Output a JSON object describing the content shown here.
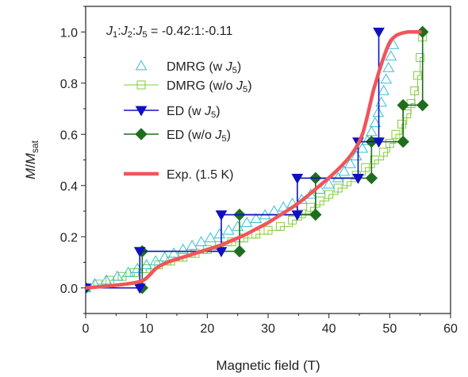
{
  "chart_data": {
    "type": "scatter",
    "annotation": {
      "parts": [
        {
          "t": "J",
          "i": true
        },
        {
          "t": "1",
          "sub": true
        },
        {
          "t": ":"
        },
        {
          "t": "J",
          "i": true
        },
        {
          "t": "2",
          "sub": true
        },
        {
          "t": ":"
        },
        {
          "t": "J",
          "i": true
        },
        {
          "t": "5",
          "sub": true
        },
        {
          "t": " = -0.42:1:-0.11"
        }
      ]
    },
    "xlabel": "Magnetic field (T)",
    "ylabel": {
      "parts": [
        {
          "t": "M",
          "i": true
        },
        {
          "t": "/"
        },
        {
          "t": "M",
          "i": true
        },
        {
          "t": "sat",
          "sub": true
        }
      ]
    },
    "xlim": [
      0,
      60
    ],
    "ylim": [
      -0.1,
      1.1
    ],
    "xticks": [
      "0",
      "10",
      "20",
      "30",
      "40",
      "50",
      "60"
    ],
    "yticks": [
      "0.0",
      "0.2",
      "0.4",
      "0.6",
      "0.8",
      "1.0"
    ],
    "grid": false,
    "legend_position": "left-center",
    "series": [
      {
        "name": [
          {
            "t": "DMRG (w "
          },
          {
            "t": "J",
            "i": true
          },
          {
            "t": "5",
            "sub": true
          },
          {
            "t": ")"
          }
        ],
        "color": "#33c0d8",
        "marker": "triangle-up-open",
        "line": "none",
        "x": [
          0,
          1.5,
          3.4,
          5.2,
          7.0,
          8.5,
          10.0,
          11.5,
          13.0,
          14.5,
          16.0,
          17.5,
          19.0,
          20.5,
          22.0,
          23.5,
          25.0,
          26.5,
          28.0,
          29.5,
          31.0,
          32.5,
          34.0,
          35.5,
          37.0,
          38.5,
          40.0,
          41.5,
          42.5,
          43.5,
          44.5,
          45.5,
          46.3,
          47.0,
          47.6,
          48.1,
          48.6,
          49.0,
          49.4,
          49.8,
          50.2,
          50.6
        ],
        "y": [
          0.0,
          0.015,
          0.03,
          0.045,
          0.06,
          0.075,
          0.09,
          0.105,
          0.12,
          0.135,
          0.15,
          0.165,
          0.18,
          0.195,
          0.21,
          0.225,
          0.24,
          0.255,
          0.27,
          0.285,
          0.3,
          0.315,
          0.33,
          0.345,
          0.365,
          0.385,
          0.405,
          0.43,
          0.455,
          0.485,
          0.515,
          0.545,
          0.575,
          0.61,
          0.645,
          0.685,
          0.725,
          0.77,
          0.815,
          0.86,
          0.905,
          0.95
        ]
      },
      {
        "name": [
          {
            "t": "DMRG (w/o "
          },
          {
            "t": "J",
            "i": true
          },
          {
            "t": "5",
            "sub": true
          },
          {
            "t": ")"
          }
        ],
        "color": "#82cc3a",
        "marker": "square-open",
        "line": "step",
        "x": [
          0,
          2.0,
          4.0,
          6.0,
          8.0,
          10.0,
          12.0,
          14.0,
          16.0,
          18.0,
          20.0,
          22.0,
          24.0,
          26.0,
          28.0,
          30.0,
          32.0,
          34.0,
          35.5,
          37.0,
          38.5,
          40.0,
          41.5,
          43.0,
          44.5,
          46.0,
          47.5,
          49.0,
          50.0,
          51.0,
          52.0,
          52.8,
          53.5,
          54.1,
          54.6,
          55.0,
          55.4
        ],
        "y": [
          0.0,
          0.015,
          0.03,
          0.045,
          0.06,
          0.075,
          0.09,
          0.105,
          0.12,
          0.135,
          0.15,
          0.165,
          0.18,
          0.195,
          0.21,
          0.225,
          0.24,
          0.265,
          0.29,
          0.315,
          0.34,
          0.365,
          0.39,
          0.415,
          0.44,
          0.47,
          0.5,
          0.53,
          0.565,
          0.6,
          0.64,
          0.68,
          0.72,
          0.77,
          0.83,
          0.9,
          0.98
        ]
      },
      {
        "name": [
          {
            "t": "ED (w "
          },
          {
            "t": "J",
            "i": true
          },
          {
            "t": "5",
            "sub": true
          },
          {
            "t": ")"
          }
        ],
        "color": "#1010c0",
        "marker": "triangle-down-filled",
        "line": "step",
        "x": [
          0,
          8.9,
          8.9,
          22.3,
          22.3,
          34.8,
          34.8,
          44.8,
          44.8,
          48.2,
          48.2
        ],
        "y": [
          0.0,
          0.0,
          0.143,
          0.143,
          0.286,
          0.286,
          0.429,
          0.429,
          0.571,
          0.571,
          1.0
        ]
      },
      {
        "name": [
          {
            "t": "ED (w/o "
          },
          {
            "t": "J",
            "i": true
          },
          {
            "t": "5",
            "sub": true
          },
          {
            "t": ")"
          }
        ],
        "color": "#1f6e1f",
        "marker": "diamond-filled",
        "line": "step",
        "x": [
          0,
          9.3,
          9.3,
          25.3,
          25.3,
          37.8,
          37.8,
          47.0,
          47.0,
          52.2,
          52.2,
          55.4,
          55.4
        ],
        "y": [
          0.0,
          0.0,
          0.143,
          0.143,
          0.286,
          0.286,
          0.429,
          0.429,
          0.571,
          0.571,
          0.714,
          0.714,
          1.0
        ]
      },
      {
        "name": [
          {
            "t": "Exp. (1.5 K)"
          }
        ],
        "color": "#f0555a",
        "marker": "none",
        "line": "smooth",
        "x": [
          0,
          4,
          8,
          9.5,
          10.5,
          11.5,
          12.5,
          14,
          16,
          18,
          20,
          22,
          24,
          26,
          28,
          30,
          32,
          34,
          36,
          38,
          40,
          42,
          43.5,
          44.5,
          45.5,
          46.2,
          46.8,
          47.3,
          47.8,
          48.3,
          49.0,
          50.0,
          51.0,
          52.0,
          53.0,
          54.0,
          55.0
        ],
        "y": [
          0.0,
          0.008,
          0.02,
          0.03,
          0.05,
          0.075,
          0.09,
          0.105,
          0.12,
          0.135,
          0.15,
          0.165,
          0.185,
          0.205,
          0.23,
          0.255,
          0.285,
          0.315,
          0.35,
          0.39,
          0.43,
          0.475,
          0.515,
          0.55,
          0.6,
          0.66,
          0.72,
          0.77,
          0.81,
          0.85,
          0.9,
          0.96,
          0.985,
          0.995,
          1.0,
          1.0,
          1.0
        ]
      }
    ]
  }
}
